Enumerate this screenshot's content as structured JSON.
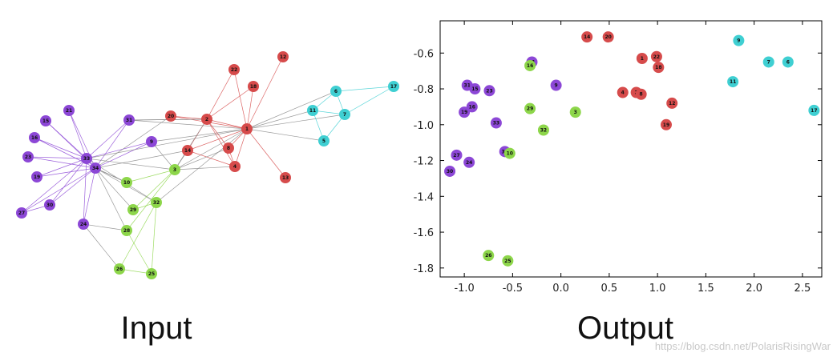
{
  "colors": {
    "community_purple": "#8c47d6",
    "community_red": "#d64b4b",
    "community_cyan": "#3fcfd2",
    "community_green": "#8dd64a",
    "edge_gray": "#888888",
    "axes": "#000000"
  },
  "captions": {
    "input": "Input",
    "output": "Output"
  },
  "watermark": "https://blog.csdn.net/PolarisRisingWar",
  "input_graph": {
    "nodes": [
      {
        "id": "34",
        "group": "purple"
      },
      {
        "id": "33",
        "group": "purple"
      },
      {
        "id": "21",
        "group": "purple"
      },
      {
        "id": "15",
        "group": "purple"
      },
      {
        "id": "16",
        "group": "purple"
      },
      {
        "id": "23",
        "group": "purple"
      },
      {
        "id": "19",
        "group": "purple"
      },
      {
        "id": "27",
        "group": "purple"
      },
      {
        "id": "30",
        "group": "purple"
      },
      {
        "id": "24",
        "group": "purple"
      },
      {
        "id": "31",
        "group": "purple"
      },
      {
        "id": "9",
        "group": "purple"
      },
      {
        "id": "20",
        "group": "red"
      },
      {
        "id": "2",
        "group": "red"
      },
      {
        "id": "1",
        "group": "red"
      },
      {
        "id": "22",
        "group": "red"
      },
      {
        "id": "18",
        "group": "red"
      },
      {
        "id": "12",
        "group": "red"
      },
      {
        "id": "14",
        "group": "red"
      },
      {
        "id": "8",
        "group": "red"
      },
      {
        "id": "4",
        "group": "red"
      },
      {
        "id": "13",
        "group": "red"
      },
      {
        "id": "6",
        "group": "cyan"
      },
      {
        "id": "17",
        "group": "cyan"
      },
      {
        "id": "11",
        "group": "cyan"
      },
      {
        "id": "7",
        "group": "cyan"
      },
      {
        "id": "5",
        "group": "cyan"
      },
      {
        "id": "3",
        "group": "green"
      },
      {
        "id": "10",
        "group": "green"
      },
      {
        "id": "29",
        "group": "green"
      },
      {
        "id": "32",
        "group": "green"
      },
      {
        "id": "28",
        "group": "green"
      },
      {
        "id": "26",
        "group": "green"
      },
      {
        "id": "25",
        "group": "green"
      }
    ],
    "edges": [
      [
        "34",
        "21"
      ],
      [
        "34",
        "15"
      ],
      [
        "34",
        "16"
      ],
      [
        "34",
        "23"
      ],
      [
        "34",
        "19"
      ],
      [
        "34",
        "27"
      ],
      [
        "34",
        "30"
      ],
      [
        "34",
        "24"
      ],
      [
        "34",
        "31"
      ],
      [
        "34",
        "9"
      ],
      [
        "34",
        "33"
      ],
      [
        "33",
        "21"
      ],
      [
        "33",
        "15"
      ],
      [
        "33",
        "16"
      ],
      [
        "33",
        "23"
      ],
      [
        "33",
        "19"
      ],
      [
        "33",
        "27"
      ],
      [
        "33",
        "30"
      ],
      [
        "33",
        "24"
      ],
      [
        "33",
        "31"
      ],
      [
        "33",
        "9"
      ],
      [
        "34",
        "10"
      ],
      [
        "34",
        "29"
      ],
      [
        "34",
        "32"
      ],
      [
        "34",
        "28"
      ],
      [
        "33",
        "3"
      ],
      [
        "33",
        "32"
      ],
      [
        "34",
        "20"
      ],
      [
        "34",
        "14"
      ],
      [
        "33",
        "1"
      ],
      [
        "31",
        "2"
      ],
      [
        "31",
        "1"
      ],
      [
        "9",
        "3"
      ],
      [
        "9",
        "1"
      ],
      [
        "24",
        "28"
      ],
      [
        "24",
        "26"
      ],
      [
        "30",
        "27"
      ],
      [
        "1",
        "2"
      ],
      [
        "1",
        "22"
      ],
      [
        "1",
        "18"
      ],
      [
        "1",
        "12"
      ],
      [
        "1",
        "14"
      ],
      [
        "1",
        "8"
      ],
      [
        "1",
        "4"
      ],
      [
        "1",
        "13"
      ],
      [
        "1",
        "20"
      ],
      [
        "1",
        "3"
      ],
      [
        "1",
        "32"
      ],
      [
        "1",
        "6"
      ],
      [
        "1",
        "7"
      ],
      [
        "1",
        "11"
      ],
      [
        "1",
        "5"
      ],
      [
        "2",
        "20"
      ],
      [
        "2",
        "22"
      ],
      [
        "2",
        "18"
      ],
      [
        "2",
        "14"
      ],
      [
        "2",
        "8"
      ],
      [
        "2",
        "4"
      ],
      [
        "2",
        "3"
      ],
      [
        "2",
        "31"
      ],
      [
        "14",
        "4"
      ],
      [
        "14",
        "3"
      ],
      [
        "8",
        "4"
      ],
      [
        "4",
        "3"
      ],
      [
        "6",
        "17"
      ],
      [
        "6",
        "7"
      ],
      [
        "6",
        "11"
      ],
      [
        "7",
        "17"
      ],
      [
        "7",
        "11"
      ],
      [
        "7",
        "5"
      ],
      [
        "11",
        "5"
      ],
      [
        "3",
        "10"
      ],
      [
        "3",
        "29"
      ],
      [
        "3",
        "28"
      ],
      [
        "3",
        "8"
      ],
      [
        "32",
        "29"
      ],
      [
        "32",
        "26"
      ],
      [
        "32",
        "25"
      ],
      [
        "26",
        "25"
      ],
      [
        "28",
        "25"
      ],
      [
        "10",
        "34"
      ]
    ]
  },
  "chart_data": {
    "type": "scatter",
    "title": "",
    "xlabel": "",
    "ylabel": "",
    "xlim": [
      -1.25,
      2.7
    ],
    "ylim": [
      -1.85,
      -0.42
    ],
    "xticks": [
      "-1.0",
      "-0.5",
      "0.0",
      "0.5",
      "1.0",
      "1.5",
      "2.0",
      "2.5"
    ],
    "xtick_values": [
      -1.0,
      -0.5,
      0.0,
      0.5,
      1.0,
      1.5,
      2.0,
      2.5
    ],
    "yticks": [
      "-0.6",
      "-0.8",
      "-1.0",
      "-1.2",
      "-1.4",
      "-1.6",
      "-1.8"
    ],
    "ytick_values": [
      -0.6,
      -0.8,
      -1.0,
      -1.2,
      -1.4,
      -1.6,
      -1.8
    ],
    "grid": false,
    "points": [
      {
        "label": "9",
        "x": 1.84,
        "y": -0.53,
        "group": "cyan"
      },
      {
        "label": "7",
        "x": 2.15,
        "y": -0.65,
        "group": "cyan"
      },
      {
        "label": "6",
        "x": 2.35,
        "y": -0.65,
        "group": "cyan"
      },
      {
        "label": "11",
        "x": 1.78,
        "y": -0.76,
        "group": "cyan"
      },
      {
        "label": "17",
        "x": 2.62,
        "y": -0.92,
        "group": "cyan"
      },
      {
        "label": "14",
        "x": 0.27,
        "y": -0.51,
        "group": "red"
      },
      {
        "label": "20",
        "x": 0.49,
        "y": -0.51,
        "group": "red"
      },
      {
        "label": "1",
        "x": 0.84,
        "y": -0.63,
        "group": "red"
      },
      {
        "label": "22",
        "x": 0.99,
        "y": -0.62,
        "group": "red"
      },
      {
        "label": "18",
        "x": 1.01,
        "y": -0.68,
        "group": "red"
      },
      {
        "label": "4",
        "x": 0.64,
        "y": -0.82,
        "group": "red"
      },
      {
        "label": "2",
        "x": 0.78,
        "y": -0.82,
        "group": "red"
      },
      {
        "label": "8",
        "x": 0.83,
        "y": -0.83,
        "group": "red"
      },
      {
        "label": "12",
        "x": 1.15,
        "y": -0.88,
        "group": "red"
      },
      {
        "label": "19",
        "x": 1.09,
        "y": -1.0,
        "group": "red"
      },
      {
        "label": "21",
        "x": -0.3,
        "y": -0.65,
        "group": "purple"
      },
      {
        "label": "9",
        "x": -0.05,
        "y": -0.78,
        "group": "purple"
      },
      {
        "label": "31",
        "x": -0.97,
        "y": -0.78,
        "group": "purple"
      },
      {
        "label": "15",
        "x": -0.89,
        "y": -0.8,
        "group": "purple"
      },
      {
        "label": "23",
        "x": -0.74,
        "y": -0.81,
        "group": "purple"
      },
      {
        "label": "16",
        "x": -0.92,
        "y": -0.9,
        "group": "purple"
      },
      {
        "label": "19",
        "x": -1.0,
        "y": -0.93,
        "group": "purple"
      },
      {
        "label": "33",
        "x": -0.67,
        "y": -0.99,
        "group": "purple"
      },
      {
        "label": "34",
        "x": -0.58,
        "y": -1.15,
        "group": "purple"
      },
      {
        "label": "27",
        "x": -1.08,
        "y": -1.17,
        "group": "purple"
      },
      {
        "label": "24",
        "x": -0.95,
        "y": -1.21,
        "group": "purple"
      },
      {
        "label": "30",
        "x": -1.15,
        "y": -1.26,
        "group": "purple"
      },
      {
        "label": "16",
        "x": -0.32,
        "y": -0.67,
        "group": "green"
      },
      {
        "label": "29",
        "x": -0.32,
        "y": -0.91,
        "group": "green"
      },
      {
        "label": "3",
        "x": 0.15,
        "y": -0.93,
        "group": "green"
      },
      {
        "label": "32",
        "x": -0.18,
        "y": -1.03,
        "group": "green"
      },
      {
        "label": "10",
        "x": -0.53,
        "y": -1.16,
        "group": "green"
      },
      {
        "label": "26",
        "x": -0.75,
        "y": -1.73,
        "group": "green"
      },
      {
        "label": "25",
        "x": -0.55,
        "y": -1.76,
        "group": "green"
      }
    ]
  }
}
